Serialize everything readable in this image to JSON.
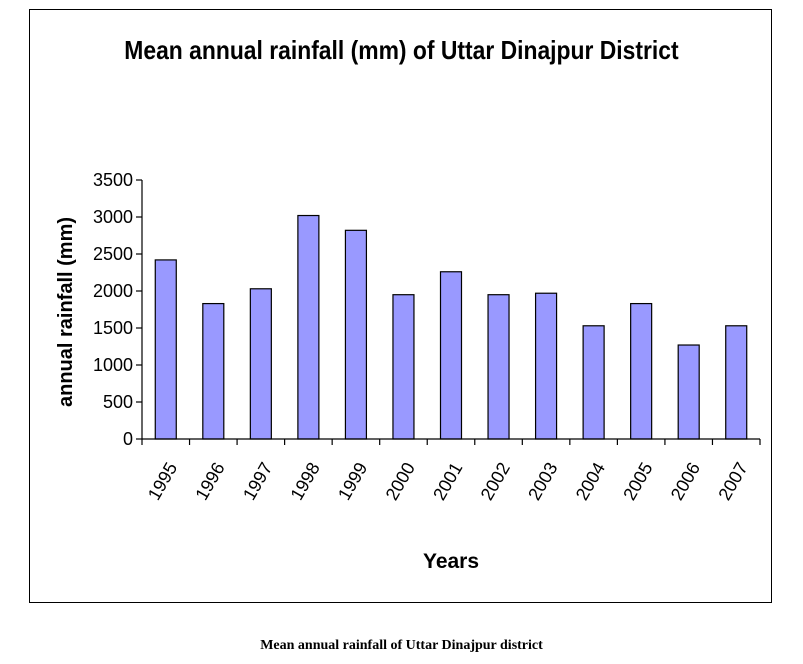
{
  "chart_data": {
    "type": "bar",
    "title": "Mean annual rainfall (mm) of Uttar Dinajpur District",
    "xlabel": "Years",
    "ylabel": "annual  rainfall  (mm)",
    "categories": [
      "1995",
      "1996",
      "1997",
      "1998",
      "1999",
      "2000",
      "2001",
      "2002",
      "2003",
      "2004",
      "2005",
      "2006",
      "2007"
    ],
    "values": [
      2420,
      1830,
      2030,
      3020,
      2820,
      1950,
      2260,
      1950,
      1970,
      1530,
      1830,
      1270,
      1530
    ],
    "ylim": [
      0,
      3500
    ],
    "yticks": [
      0,
      500,
      1000,
      1500,
      2000,
      2500,
      3000,
      3500
    ],
    "bar_color": "#9999ff",
    "grid": false,
    "legend": "none"
  },
  "caption": "Mean annual rainfall of Uttar Dinajpur district"
}
